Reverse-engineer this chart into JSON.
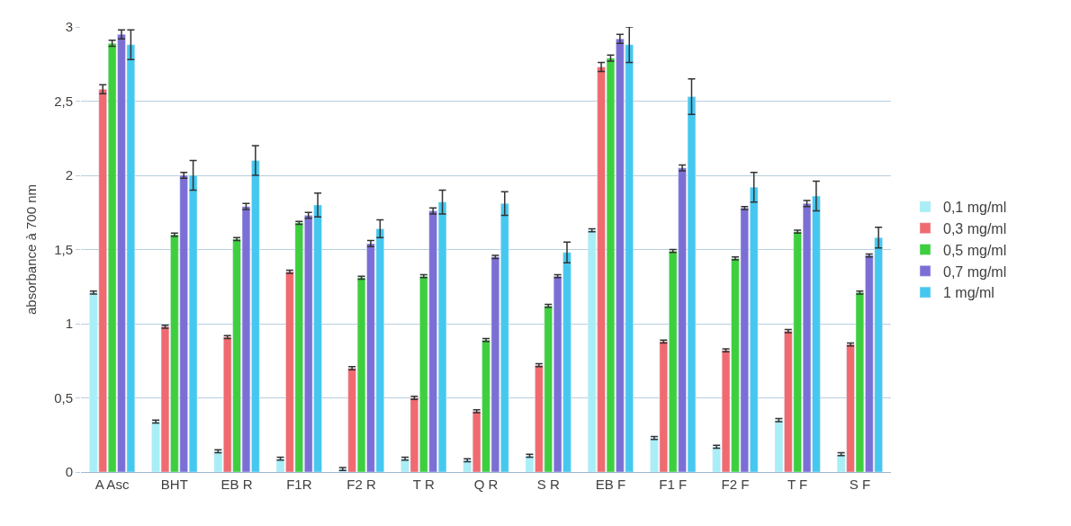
{
  "chart_data": {
    "type": "bar",
    "ylabel": "absorbance à 700 nm",
    "categories": [
      "A Asc",
      "BHT",
      "EB R",
      "F1R",
      "F2 R",
      "T R",
      "Q R",
      "S R",
      "EB F",
      "F1 F",
      "F2 F",
      "T F",
      "S F"
    ],
    "series": [
      {
        "name": "0,1 mg/ml",
        "color": "#a8eef6",
        "values": [
          1.21,
          0.34,
          0.14,
          0.09,
          0.02,
          0.09,
          0.08,
          0.11,
          1.63,
          0.23,
          0.17,
          0.35,
          0.12
        ],
        "errors": [
          0.01,
          0.01,
          0.01,
          0.01,
          0.01,
          0.01,
          0.01,
          0.01,
          0.01,
          0.01,
          0.01,
          0.01,
          0.01
        ]
      },
      {
        "name": "0,3 mg/ml",
        "color": "#f06a70",
        "values": [
          2.58,
          0.98,
          0.91,
          1.35,
          0.7,
          0.5,
          0.41,
          0.72,
          2.73,
          0.88,
          0.82,
          0.95,
          0.86
        ],
        "errors": [
          0.03,
          0.01,
          0.01,
          0.01,
          0.01,
          0.01,
          0.01,
          0.01,
          0.03,
          0.01,
          0.01,
          0.01,
          0.01
        ]
      },
      {
        "name": "0,5 mg/ml",
        "color": "#3ecf3e",
        "values": [
          2.89,
          1.6,
          1.57,
          1.68,
          1.31,
          1.32,
          0.89,
          1.12,
          2.79,
          1.49,
          1.44,
          1.62,
          1.21
        ],
        "errors": [
          0.02,
          0.01,
          0.01,
          0.01,
          0.01,
          0.01,
          0.01,
          0.01,
          0.02,
          0.01,
          0.01,
          0.01,
          0.01
        ]
      },
      {
        "name": "0,7 mg/ml",
        "color": "#7b6fd6",
        "values": [
          2.95,
          2.0,
          1.79,
          1.73,
          1.54,
          1.76,
          1.45,
          1.32,
          2.92,
          2.05,
          1.78,
          1.81,
          1.46
        ],
        "errors": [
          0.03,
          0.02,
          0.02,
          0.02,
          0.02,
          0.02,
          0.01,
          0.01,
          0.03,
          0.02,
          0.01,
          0.02,
          0.01
        ]
      },
      {
        "name": "1 mg/ml",
        "color": "#45c8f0",
        "values": [
          2.88,
          2.0,
          2.1,
          1.8,
          1.64,
          1.82,
          1.81,
          1.48,
          2.88,
          2.53,
          1.92,
          1.86,
          1.58
        ],
        "errors": [
          0.1,
          0.1,
          0.1,
          0.08,
          0.06,
          0.08,
          0.08,
          0.07,
          0.12,
          0.12,
          0.1,
          0.1,
          0.07
        ]
      }
    ],
    "ylim": [
      0,
      3
    ],
    "yticks": [
      0,
      {
        "value": 0.5,
        "label": "0,5"
      },
      1,
      {
        "value": 1.5,
        "label": "1,5"
      },
      2,
      {
        "value": 2.5,
        "label": "2,5"
      },
      3
    ],
    "grid": "y",
    "legend": "right"
  }
}
